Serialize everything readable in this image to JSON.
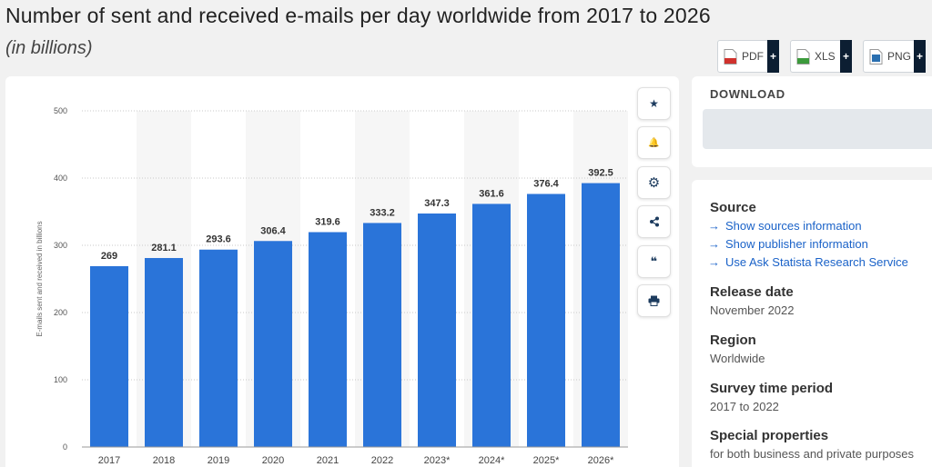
{
  "header": {
    "title": "Number of sent and received e-mails per day worldwide from 2017 to 2026",
    "subtitle": "(in billions)"
  },
  "tools": {
    "items": [
      {
        "icon": "star-icon",
        "glyph": "★"
      },
      {
        "icon": "bell-icon",
        "glyph": "🔔"
      },
      {
        "icon": "gear-icon",
        "glyph": "⚙"
      },
      {
        "icon": "share-icon",
        "glyph": "⋖"
      },
      {
        "icon": "quote-icon",
        "glyph": "❝"
      },
      {
        "icon": "print-icon",
        "glyph": "⎙"
      }
    ]
  },
  "download": {
    "title": "DOWNLOAD",
    "buttons": [
      {
        "label": "PDF",
        "plus": "+",
        "color": "#d0312d"
      },
      {
        "label": "XLS",
        "plus": "+",
        "color": "#3c9a3c"
      },
      {
        "label": "PNG",
        "plus": "+",
        "color": "#2a6fb0"
      }
    ]
  },
  "info": {
    "source_heading": "Source",
    "source_links": [
      "Show sources information",
      "Show publisher information",
      "Use Ask Statista Research Service"
    ],
    "arrow": "→",
    "release_heading": "Release date",
    "release_value": "November 2022",
    "region_heading": "Region",
    "region_value": "Worldwide",
    "survey_heading": "Survey time period",
    "survey_value": "2017 to 2022",
    "special_heading": "Special properties",
    "special_value": "for both business and private purposes"
  },
  "chart_data": {
    "type": "bar",
    "categories": [
      "2017",
      "2018",
      "2019",
      "2020",
      "2021",
      "2022",
      "2023*",
      "2024*",
      "2025*",
      "2026*"
    ],
    "values": [
      269,
      281.1,
      293.6,
      306.4,
      319.6,
      333.2,
      347.3,
      361.6,
      376.4,
      392.5
    ],
    "value_labels": [
      "269",
      "281.1",
      "293.6",
      "306.4",
      "319.6",
      "333.2",
      "347.3",
      "361.6",
      "376.4",
      "392.5"
    ],
    "ylabel": "E-mails sent and received in billions",
    "ylim": [
      0,
      500
    ],
    "yticks": [
      0,
      100,
      200,
      300,
      400,
      500
    ],
    "grid": true,
    "bar_color": "#2a74d9",
    "alt_band_color": "#f6f6f6"
  }
}
